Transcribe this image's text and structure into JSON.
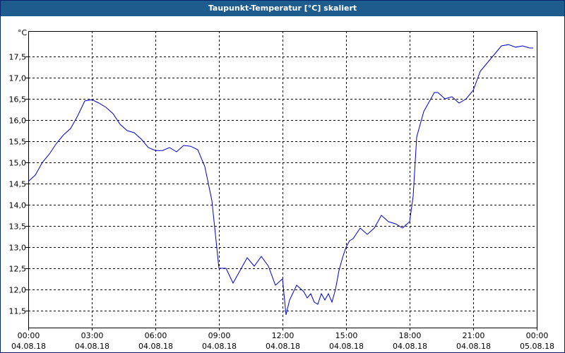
{
  "window": {
    "title": "Taupunkt-Temperatur [°C] skaliert"
  },
  "colors": {
    "titlebar": "#1d5c8d",
    "line": "#0000cc",
    "grid": "#000000",
    "background": "#ffffff"
  },
  "chart_data": {
    "type": "line",
    "title": "Taupunkt-Temperatur [°C] skaliert",
    "ylabel": "°C",
    "xlabel": "",
    "ylim": [
      11.1,
      18.1
    ],
    "xlim": [
      "2018-08-04 00:00",
      "2018-08-05 00:00"
    ],
    "grid": true,
    "y_ticks": [
      "11,5",
      "12,0",
      "12,5",
      "13,0",
      "13,5",
      "14,0",
      "14,5",
      "15,0",
      "15,5",
      "16,0",
      "16,5",
      "17,0",
      "17,5"
    ],
    "y_tick_values": [
      11.5,
      12.0,
      12.5,
      13.0,
      13.5,
      14.0,
      14.5,
      15.0,
      15.5,
      16.0,
      16.5,
      17.0,
      17.5
    ],
    "x_ticks": [
      {
        "time": "00:00",
        "date": "04.08.18"
      },
      {
        "time": "03:00",
        "date": "04.08.18"
      },
      {
        "time": "06:00",
        "date": "04.08.18"
      },
      {
        "time": "09:00",
        "date": "04.08.18"
      },
      {
        "time": "12:00",
        "date": "04.08.18"
      },
      {
        "time": "15:00",
        "date": "04.08.18"
      },
      {
        "time": "18:00",
        "date": "04.08.18"
      },
      {
        "time": "21:00",
        "date": "04.08.18"
      },
      {
        "time": "00:00",
        "date": "05.08.18"
      }
    ],
    "x_tick_hours": [
      0,
      3,
      6,
      9,
      12,
      15,
      18,
      21,
      24
    ],
    "series": [
      {
        "x": [
          "2018-08-04 00:00",
          "2018-08-04 00:20",
          "2018-08-04 00:40",
          "2018-08-04 01:00",
          "2018-08-04 01:20",
          "2018-08-04 01:40",
          "2018-08-04 02:00",
          "2018-08-04 02:20",
          "2018-08-04 02:40",
          "2018-08-04 03:00",
          "2018-08-04 03:20",
          "2018-08-04 03:40",
          "2018-08-04 04:00",
          "2018-08-04 04:20",
          "2018-08-04 04:40",
          "2018-08-04 05:00",
          "2018-08-04 05:20",
          "2018-08-04 05:40",
          "2018-08-04 06:00",
          "2018-08-04 06:20",
          "2018-08-04 06:40",
          "2018-08-04 07:00",
          "2018-08-04 07:20",
          "2018-08-04 07:40",
          "2018-08-04 08:00",
          "2018-08-04 08:20",
          "2018-08-04 08:40",
          "2018-08-04 09:00",
          "2018-08-04 09:10",
          "2018-08-04 09:20",
          "2018-08-04 09:40",
          "2018-08-04 10:00",
          "2018-08-04 10:20",
          "2018-08-04 10:40",
          "2018-08-04 11:00",
          "2018-08-04 11:20",
          "2018-08-04 11:40",
          "2018-08-04 12:00",
          "2018-08-04 12:10",
          "2018-08-04 12:20",
          "2018-08-04 12:40",
          "2018-08-04 13:00",
          "2018-08-04 13:10",
          "2018-08-04 13:20",
          "2018-08-04 13:30",
          "2018-08-04 13:40",
          "2018-08-04 13:50",
          "2018-08-04 14:00",
          "2018-08-04 14:10",
          "2018-08-04 14:20",
          "2018-08-04 14:30",
          "2018-08-04 14:40",
          "2018-08-04 14:50",
          "2018-08-04 15:00",
          "2018-08-04 15:10",
          "2018-08-04 15:20",
          "2018-08-04 15:40",
          "2018-08-04 16:00",
          "2018-08-04 16:20",
          "2018-08-04 16:40",
          "2018-08-04 17:00",
          "2018-08-04 17:20",
          "2018-08-04 17:40",
          "2018-08-04 18:00",
          "2018-08-04 18:10",
          "2018-08-04 18:20",
          "2018-08-04 18:40",
          "2018-08-04 18:50",
          "2018-08-04 19:00",
          "2018-08-04 19:10",
          "2018-08-04 19:20",
          "2018-08-04 19:40",
          "2018-08-04 20:00",
          "2018-08-04 20:20",
          "2018-08-04 20:40",
          "2018-08-04 21:00",
          "2018-08-04 21:20",
          "2018-08-04 21:40",
          "2018-08-04 22:00",
          "2018-08-04 22:20",
          "2018-08-04 22:40",
          "2018-08-04 23:00",
          "2018-08-04 23:20",
          "2018-08-04 23:40",
          "2018-08-04 23:50"
        ],
        "values": [
          14.55,
          14.7,
          15.0,
          15.2,
          15.45,
          15.65,
          15.8,
          16.1,
          16.45,
          16.48,
          16.4,
          16.3,
          16.15,
          15.9,
          15.75,
          15.7,
          15.55,
          15.35,
          15.28,
          15.28,
          15.35,
          15.25,
          15.4,
          15.38,
          15.3,
          14.9,
          14.1,
          12.5,
          12.5,
          12.5,
          12.15,
          12.45,
          12.75,
          12.55,
          12.78,
          12.55,
          12.1,
          12.25,
          11.4,
          11.75,
          12.1,
          11.95,
          11.8,
          11.9,
          11.7,
          11.65,
          11.9,
          11.75,
          11.9,
          11.7,
          12.0,
          12.45,
          12.75,
          13.0,
          13.15,
          13.2,
          13.45,
          13.3,
          13.45,
          13.75,
          13.6,
          13.55,
          13.45,
          13.6,
          14.2,
          15.6,
          16.2,
          16.35,
          16.5,
          16.65,
          16.65,
          16.5,
          16.55,
          16.4,
          16.5,
          16.7,
          17.15,
          17.35,
          17.55,
          17.75,
          17.78,
          17.72,
          17.75,
          17.7,
          17.7
        ]
      }
    ]
  }
}
